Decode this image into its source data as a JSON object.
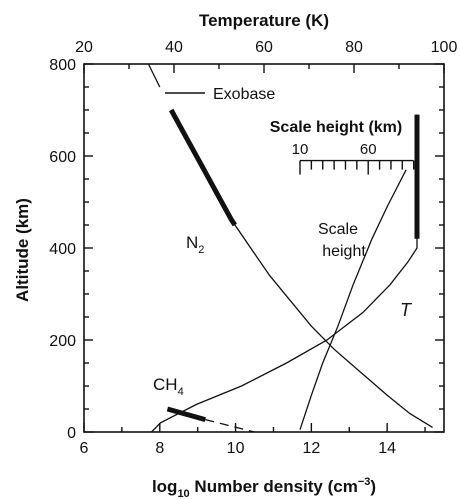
{
  "chart_data": {
    "type": "line",
    "title": "",
    "xlabel_bottom": {
      "pre": "log",
      "sub": "10",
      "post": " Number density (cm",
      "sup": "−3",
      "end": ")"
    },
    "xlabel_top": "Temperature (K)",
    "ylabel": "Altitude (km)",
    "xlim_bottom": [
      6,
      15.5
    ],
    "xlim_top": [
      20,
      100
    ],
    "ylim": [
      0,
      800
    ],
    "x_ticks_bottom": [
      6,
      8,
      10,
      12,
      14
    ],
    "x_ticks_top": [
      20,
      40,
      60,
      80,
      100
    ],
    "y_ticks": [
      0,
      200,
      400,
      600,
      800
    ],
    "legend": {
      "position": "top-left",
      "label": "Exobase"
    },
    "scale_inset": {
      "title": "Scale height (km)",
      "labels": [
        "10",
        "60"
      ],
      "x_start": 11.7,
      "x_end": 14.7,
      "y": 590
    },
    "series": [
      {
        "name": "N",
        "label_sub": "2",
        "axis": "bottom",
        "points": [
          [
            7.7,
            800
          ],
          [
            8.0,
            750
          ],
          [
            8.3,
            700
          ],
          [
            8.7,
            640
          ],
          [
            9.1,
            580
          ],
          [
            9.5,
            520
          ],
          [
            9.9,
            460
          ],
          [
            10.4,
            400
          ],
          [
            10.9,
            340
          ],
          [
            11.4,
            290
          ],
          [
            12.0,
            230
          ],
          [
            12.6,
            180
          ],
          [
            13.3,
            130
          ],
          [
            14.0,
            80
          ],
          [
            14.6,
            40
          ],
          [
            15.2,
            10
          ]
        ],
        "exobase_range": [
          450,
          700
        ]
      },
      {
        "name": "CH",
        "label_sub": "4",
        "axis": "bottom",
        "solid": [
          [
            8.2,
            50
          ],
          [
            9.2,
            27
          ]
        ],
        "dashed": [
          [
            9.2,
            27
          ],
          [
            10.5,
            0
          ]
        ],
        "exobase_range": [
          25,
          50
        ]
      },
      {
        "name": "T",
        "axis": "top",
        "points": [
          [
            35,
            0
          ],
          [
            37,
            20
          ],
          [
            45,
            60
          ],
          [
            55,
            100
          ],
          [
            65,
            150
          ],
          [
            74,
            200
          ],
          [
            82,
            260
          ],
          [
            88,
            320
          ],
          [
            92,
            370
          ],
          [
            94,
            400
          ],
          [
            94,
            690
          ]
        ],
        "exobase_range": [
          420,
          690
        ]
      },
      {
        "name": "Scale\nheight",
        "axis": "bottom",
        "points": [
          [
            11.7,
            5
          ],
          [
            12.0,
            80
          ],
          [
            12.3,
            150
          ],
          [
            12.7,
            230
          ],
          [
            13.1,
            320
          ],
          [
            13.6,
            420
          ],
          [
            14.0,
            490
          ],
          [
            14.5,
            570
          ]
        ]
      }
    ]
  }
}
